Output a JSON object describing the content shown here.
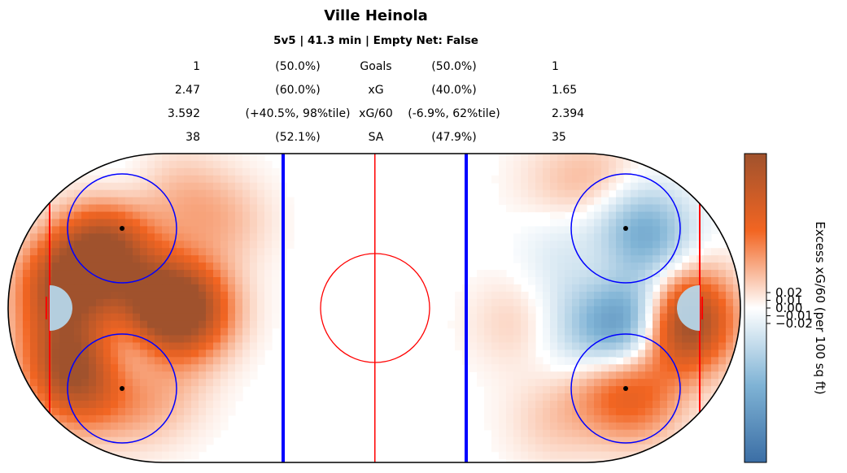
{
  "title": "Ville Heinola",
  "subtitle": "5v5 | 41.3 min | Empty Net: False",
  "stats": [
    {
      "left": "1",
      "left_pct": "(50.0%)",
      "label": "Goals",
      "right_pct": "(50.0%)",
      "right": "1"
    },
    {
      "left": "2.47",
      "left_pct": "(60.0%)",
      "label": "xG",
      "right_pct": "(40.0%)",
      "right": "1.65"
    },
    {
      "left": "3.592",
      "left_pct": "(+40.5%, 98%tile)",
      "label": "xG/60",
      "right_pct": "(-6.9%, 62%tile)",
      "right": "2.394"
    },
    {
      "left": "38",
      "left_pct": "(52.1%)",
      "label": "SA",
      "right_pct": "(47.9%)",
      "right": "35"
    }
  ],
  "colorbar": {
    "label": "Excess xG/60 (per 100 sq ft)",
    "ticks": [
      "0.02",
      "0.01",
      "0.00",
      "−0.01",
      "−0.02"
    ],
    "tick_values": [
      0.02,
      0.01,
      0.0,
      -0.01,
      -0.02
    ],
    "range": [
      -0.2,
      0.2
    ],
    "colors": {
      "negative": "#3b6ea5",
      "zero": "#ffffff",
      "positive": "#f26522",
      "max": "#a0522d"
    }
  },
  "chart_data": {
    "type": "heatmap",
    "title": "Ville Heinola",
    "subtitle": "5v5 | 41.3 min | Empty Net: False",
    "colorbar_label": "Excess xG/60 (per 100 sq ft)",
    "colorbar_ticks": [
      0.02,
      0.01,
      0.0,
      -0.01,
      -0.02
    ],
    "x_range_ft": [
      -100,
      100
    ],
    "y_range_ft": [
      -42.5,
      42.5
    ],
    "hotspots": [
      {
        "x": -74,
        "y": 18,
        "value": 0.19
      },
      {
        "x": -85,
        "y": 8,
        "value": 0.17
      },
      {
        "x": -60,
        "y": 2,
        "value": 0.17
      },
      {
        "x": -52,
        "y": 0,
        "value": 0.15
      },
      {
        "x": -83,
        "y": -12,
        "value": 0.1
      },
      {
        "x": -82,
        "y": -20,
        "value": 0.12
      },
      {
        "x": -70,
        "y": -10,
        "value": -0.06
      },
      {
        "x": -68,
        "y": -25,
        "value": 0.04
      },
      {
        "x": -70,
        "y": 28,
        "value": -0.03
      },
      {
        "x": -58,
        "y": -22,
        "value": 0.03
      },
      {
        "x": -42,
        "y": 25,
        "value": 0.04
      },
      {
        "x": -55,
        "y": 32,
        "value": 0.04
      },
      {
        "x": -88,
        "y": -5,
        "value": 0.05
      },
      {
        "x": 83,
        "y": -5,
        "value": 0.17
      },
      {
        "x": 85,
        "y": 2,
        "value": 0.08
      },
      {
        "x": 68,
        "y": -4,
        "value": -0.12
      },
      {
        "x": 72,
        "y": 2,
        "value": -0.05
      },
      {
        "x": 70,
        "y": 22,
        "value": -0.08
      },
      {
        "x": 75,
        "y": 20,
        "value": -0.05
      },
      {
        "x": 71,
        "y": -24,
        "value": 0.08
      },
      {
        "x": 62,
        "y": -20,
        "value": 0.06
      },
      {
        "x": 63,
        "y": 12,
        "value": 0.05
      },
      {
        "x": 56,
        "y": -10,
        "value": -0.04
      },
      {
        "x": 55,
        "y": 5,
        "value": -0.03
      },
      {
        "x": 52,
        "y": 18,
        "value": -0.03
      },
      {
        "x": 38,
        "y": -3,
        "value": 0.03
      },
      {
        "x": 48,
        "y": -30,
        "value": 0.03
      },
      {
        "x": 60,
        "y": 35,
        "value": 0.04
      },
      {
        "x": 48,
        "y": 35,
        "value": 0.02
      }
    ]
  }
}
